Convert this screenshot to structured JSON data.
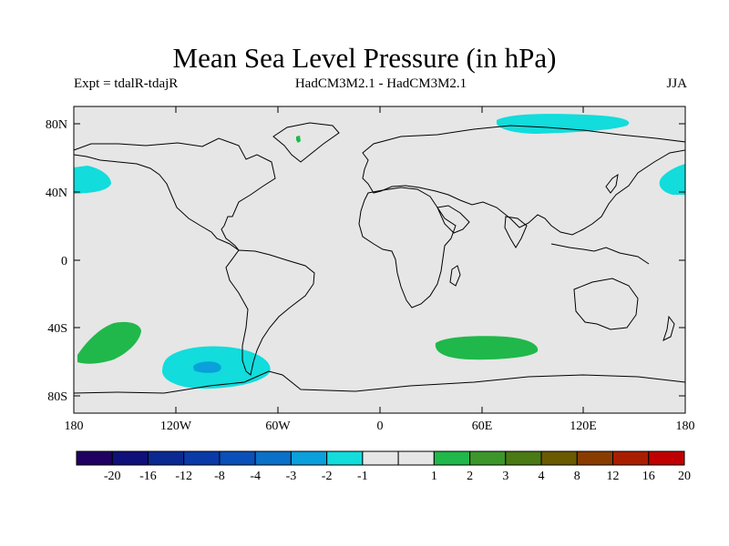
{
  "figure": {
    "title": "Mean Sea Level Pressure (in hPa)",
    "experiment": "Expt = tdalR-tdajR",
    "models": "HadCM3M2.1 - HadCM3M2.1",
    "season": "JJA"
  },
  "map": {
    "background": "#e6e6e6",
    "lat_ticks": [
      "80N",
      "40N",
      "0",
      "40S",
      "80S"
    ],
    "lon_ticks": [
      "180",
      "120W",
      "60W",
      "0",
      "60E",
      "120E",
      "180"
    ]
  },
  "colorbar": {
    "labels": [
      "-20",
      "-16",
      "-12",
      "-8",
      "-4",
      "-3",
      "-2",
      "-1",
      "1",
      "2",
      "3",
      "4",
      "8",
      "12",
      "16",
      "20"
    ],
    "colors": [
      "#200060",
      "#10107a",
      "#0a2a92",
      "#0a3aa8",
      "#0a50b8",
      "#0a70c8",
      "#0aa0dc",
      "#12dcdc",
      "#e6e6e6",
      "#20b84a",
      "#3c962a",
      "#4a7a14",
      "#6a5a00",
      "#8a3c00",
      "#aa1e00",
      "#c00000"
    ]
  },
  "anomalies": [
    {
      "label": "negative anomaly -2 to -1 hPa",
      "color": "#12dcdc"
    },
    {
      "label": "negative anomaly -3 to -2 hPa",
      "color": "#0aa0dc"
    },
    {
      "label": "positive anomaly 1 to 2 hPa",
      "color": "#20b84a"
    }
  ]
}
